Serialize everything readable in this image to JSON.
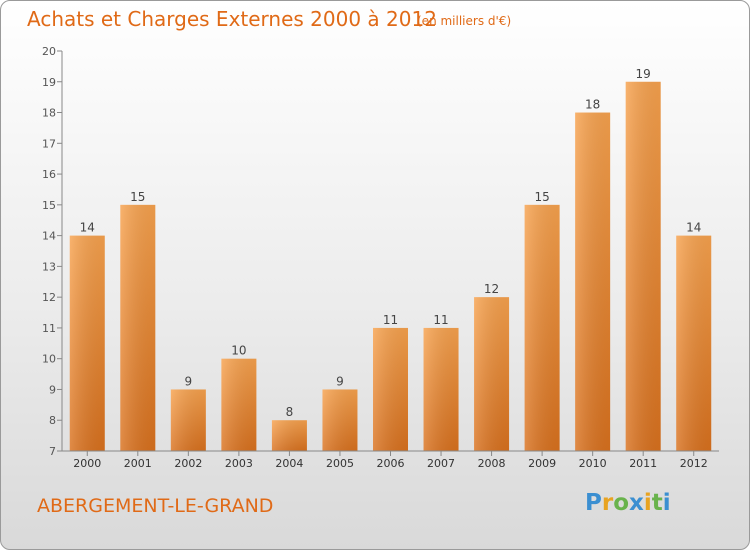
{
  "header": {
    "title": "Achats et Charges Externes 2000 à 2012",
    "unit": "(en milliers d'€)"
  },
  "footer": {
    "place": "ABERGEMENT-LE-GRAND",
    "logo": "Proxiti"
  },
  "colors": {
    "bar_top": "#f7a24e",
    "bar_bottom": "#d9711e",
    "title": "#e06a17",
    "axis": "#888888"
  },
  "chart_data": {
    "type": "bar",
    "title": "Achats et Charges Externes 2000 à 2012",
    "categories": [
      "2000",
      "2001",
      "2002",
      "2003",
      "2004",
      "2005",
      "2006",
      "2007",
      "2008",
      "2009",
      "2010",
      "2011",
      "2012"
    ],
    "values": [
      14,
      15,
      9,
      10,
      8,
      9,
      11,
      11,
      12,
      15,
      18,
      19,
      14
    ],
    "ylim": [
      7,
      20
    ],
    "yticks": [
      7,
      8,
      9,
      10,
      11,
      12,
      13,
      14,
      15,
      16,
      17,
      18,
      19,
      20
    ],
    "xlabel": "",
    "ylabel": "",
    "grid": false
  }
}
